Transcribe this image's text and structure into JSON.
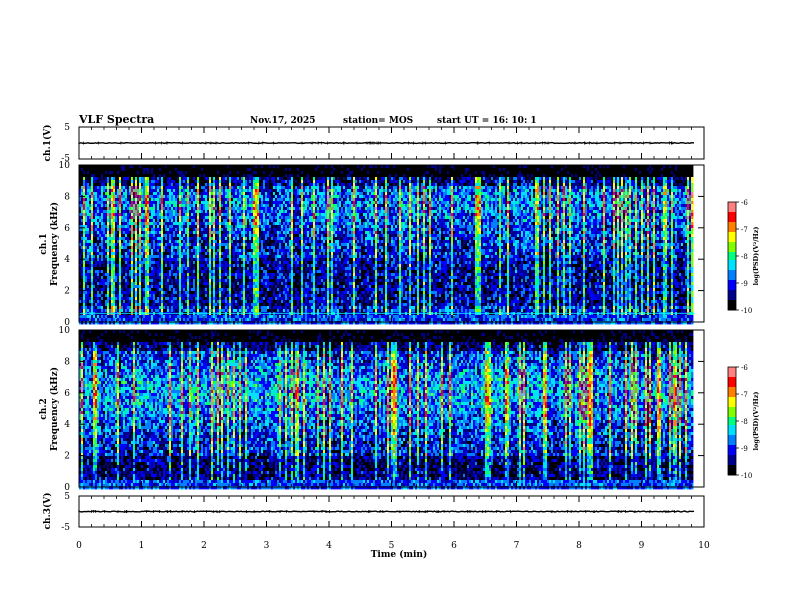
{
  "header": {
    "title": "VLF Spectra",
    "date": "Nov.17, 2025",
    "station": "station= MOS",
    "start_ut": "start  UT =   16: 10: 1"
  },
  "chart_data": [
    {
      "type": "line",
      "name": "ch1-waveform",
      "ylabel": "ch.1(V)",
      "yticks": [
        "5",
        "-5"
      ],
      "ylim": [
        -5,
        5
      ],
      "xlim": [
        0,
        10
      ],
      "baseline_value": 0
    },
    {
      "type": "heatmap",
      "name": "ch1-spectrogram",
      "ylabel_line1": "ch.1",
      "ylabel_line2": "Frequency (kHz)",
      "yticks": [
        "0",
        "2",
        "4",
        "6",
        "8",
        "10"
      ],
      "ylim": [
        0,
        10
      ],
      "xlim": [
        0,
        10
      ],
      "data_end_min": 9.85,
      "colorbar": {
        "label": "log(PSD)(V²/Hz)",
        "ticks": [
          "-6",
          "-7",
          "-8",
          "-9",
          "-10"
        ],
        "range": [
          -10,
          -6
        ]
      }
    },
    {
      "type": "heatmap",
      "name": "ch2-spectrogram",
      "ylabel_line1": "ch.2",
      "ylabel_line2": "Frequency (kHz)",
      "yticks": [
        "0",
        "2",
        "4",
        "6",
        "8",
        "10"
      ],
      "ylim": [
        0,
        10
      ],
      "xlim": [
        0,
        10
      ],
      "data_end_min": 9.85,
      "colorbar": {
        "label": "log(PSD)(V²/Hz)",
        "ticks": [
          "-6",
          "-7",
          "-8",
          "-9",
          "-10"
        ],
        "range": [
          -10,
          -6
        ]
      }
    },
    {
      "type": "line",
      "name": "ch3-waveform",
      "ylabel": "ch.3(V)",
      "yticks": [
        "5",
        "-5"
      ],
      "ylim": [
        -5,
        5
      ],
      "xlim": [
        0,
        10
      ],
      "baseline_value": 0
    }
  ],
  "xaxis": {
    "label": "Time (min)",
    "ticks": [
      "0",
      "1",
      "2",
      "3",
      "4",
      "5",
      "6",
      "7",
      "8",
      "9",
      "10"
    ]
  },
  "colors": {
    "cmap": [
      "#000000",
      "#00008c",
      "#0000ff",
      "#0080ff",
      "#00e0ff",
      "#00ff80",
      "#80ff00",
      "#ffff00",
      "#ff8000",
      "#ff0000",
      "#ff8080",
      "#ffe0e0"
    ]
  }
}
